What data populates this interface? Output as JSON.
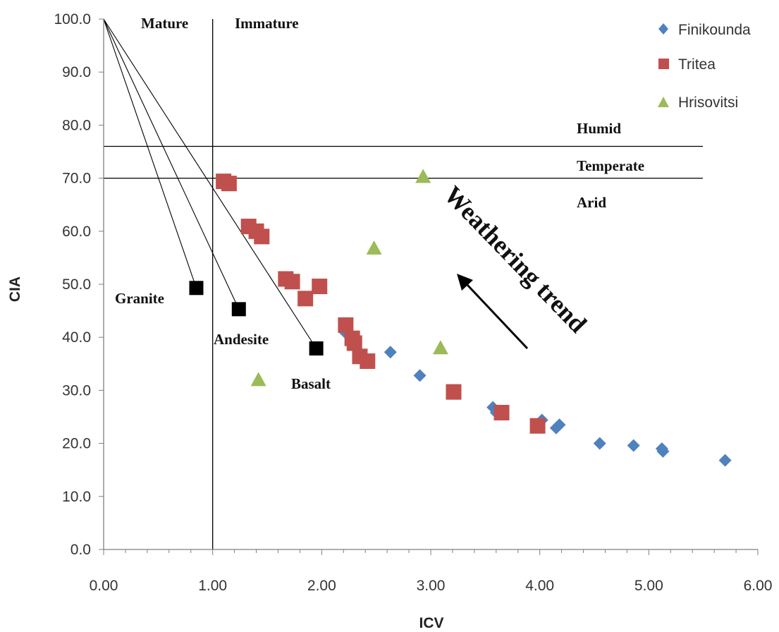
{
  "chart_data": {
    "type": "scatter",
    "title": "",
    "xlabel": "ICV",
    "ylabel": "CIA",
    "xlim": [
      0,
      6
    ],
    "ylim": [
      0,
      100
    ],
    "x_ticks": [
      "0.00",
      "1.00",
      "2.00",
      "3.00",
      "4.00",
      "5.00",
      "6.00"
    ],
    "y_ticks": [
      "0.0",
      "10.0",
      "20.0",
      "30.0",
      "40.0",
      "50.0",
      "60.0",
      "70.0",
      "80.0",
      "90.0",
      "100.0"
    ],
    "grid": false,
    "legend_position": "top-right",
    "series": [
      {
        "name": "Finikounda",
        "marker": "diamond",
        "color": "#4f81bd",
        "points": [
          [
            2.22,
            40.8
          ],
          [
            2.63,
            37.2
          ],
          [
            2.9,
            32.8
          ],
          [
            3.2,
            30.0
          ],
          [
            3.57,
            26.8
          ],
          [
            3.6,
            25.8
          ],
          [
            4.02,
            24.4
          ],
          [
            4.15,
            22.9
          ],
          [
            4.18,
            23.5
          ],
          [
            4.55,
            20.0
          ],
          [
            4.86,
            19.6
          ],
          [
            5.12,
            19.0
          ],
          [
            5.13,
            18.5
          ],
          [
            5.7,
            16.8
          ]
        ]
      },
      {
        "name": "Tritea",
        "marker": "square",
        "color": "#c0504d",
        "points": [
          [
            1.1,
            69.4
          ],
          [
            1.15,
            69.0
          ],
          [
            1.33,
            60.9
          ],
          [
            1.4,
            60.0
          ],
          [
            1.45,
            59.0
          ],
          [
            1.67,
            51.0
          ],
          [
            1.73,
            50.5
          ],
          [
            1.85,
            47.3
          ],
          [
            1.98,
            49.6
          ],
          [
            2.22,
            42.3
          ],
          [
            2.28,
            39.8
          ],
          [
            2.3,
            38.9
          ],
          [
            2.35,
            36.4
          ],
          [
            2.42,
            35.5
          ],
          [
            3.21,
            29.7
          ],
          [
            3.65,
            25.8
          ],
          [
            3.98,
            23.3
          ]
        ]
      },
      {
        "name": "Hrisovitsi",
        "marker": "triangle",
        "color": "#9bbb59",
        "points": [
          [
            2.93,
            70.3
          ],
          [
            2.48,
            56.8
          ],
          [
            3.09,
            38.0
          ],
          [
            1.42,
            32.0
          ]
        ]
      }
    ],
    "rocks": [
      {
        "label": "Granite",
        "x": 0.85,
        "y": 49.3
      },
      {
        "label": "Andesite",
        "x": 1.24,
        "y": 45.3
      },
      {
        "label": "Basalt",
        "x": 1.95,
        "y": 37.9
      }
    ],
    "mixing_line_origin": {
      "x": 0,
      "y": 100
    },
    "vertical_line_x": 1.0,
    "horizontal_lines_y": [
      76.0,
      70.0
    ],
    "annotations": {
      "mature": "Mature",
      "immature": "Immature",
      "humid": "Humid",
      "temperate": "Temperate",
      "arid": "Arid",
      "trend": "Weathering trend"
    }
  }
}
